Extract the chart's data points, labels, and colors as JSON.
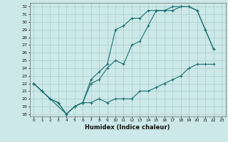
{
  "xlabel": "Humidex (Indice chaleur)",
  "bg_color": "#cce8e8",
  "grid_color": "#aacccc",
  "line_color": "#1a7070",
  "xlim": [
    -0.5,
    23.5
  ],
  "ylim": [
    17.7,
    32.5
  ],
  "xticks": [
    0,
    1,
    2,
    3,
    4,
    5,
    6,
    7,
    8,
    9,
    10,
    11,
    12,
    13,
    14,
    15,
    16,
    17,
    18,
    19,
    20,
    21,
    22,
    23
  ],
  "yticks": [
    18,
    19,
    20,
    21,
    22,
    23,
    24,
    25,
    26,
    27,
    28,
    29,
    30,
    31,
    32
  ],
  "line1_x": [
    0,
    1,
    2,
    3,
    4,
    5,
    6,
    7,
    8,
    9,
    10,
    11,
    12,
    13,
    14,
    15,
    16,
    17,
    18,
    19,
    20,
    21,
    22
  ],
  "line1_y": [
    22,
    21,
    20,
    19.5,
    18,
    19,
    19.5,
    19.5,
    20,
    19.5,
    20,
    20,
    20,
    21,
    21,
    21.5,
    22,
    22.5,
    23,
    24,
    24.5,
    24.5,
    24.5
  ],
  "line2_x": [
    0,
    1,
    2,
    3,
    4,
    5,
    6,
    7,
    8,
    9,
    10,
    11,
    12,
    13,
    14,
    15,
    16,
    17,
    18,
    19,
    20,
    21,
    22
  ],
  "line2_y": [
    22,
    21,
    20,
    19.5,
    18,
    19,
    19.5,
    22.5,
    23.5,
    24.5,
    29,
    29.5,
    30.5,
    30.5,
    31.5,
    31.5,
    31.5,
    32,
    32,
    32,
    31.5,
    29,
    26.5
  ],
  "line3_x": [
    0,
    4,
    5,
    6,
    7,
    8,
    9,
    10,
    11,
    12,
    13,
    14,
    15,
    16,
    17,
    18,
    19,
    20,
    21,
    22
  ],
  "line3_y": [
    22,
    18,
    19,
    19.5,
    22,
    22.5,
    24,
    25,
    24.5,
    27,
    27.5,
    29.5,
    31.5,
    31.5,
    31.5,
    32,
    32,
    31.5,
    29,
    26.5
  ]
}
